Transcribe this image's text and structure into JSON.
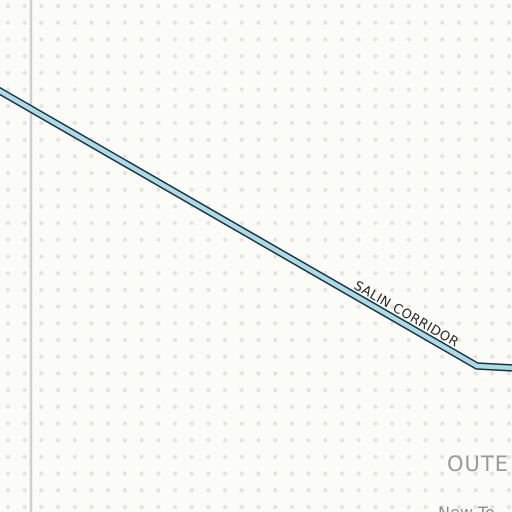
{
  "map": {
    "colors": {
      "background": "#fbfbf8",
      "dots": "#e4e4da",
      "boundary_line": "#cfcfcf",
      "road_casing": "#1f2f38",
      "road_fill": "#a8dcea"
    },
    "road": {
      "name": "SALIN CORRIDOR"
    },
    "labels": {
      "region": "OUTE",
      "place": "New To"
    }
  }
}
